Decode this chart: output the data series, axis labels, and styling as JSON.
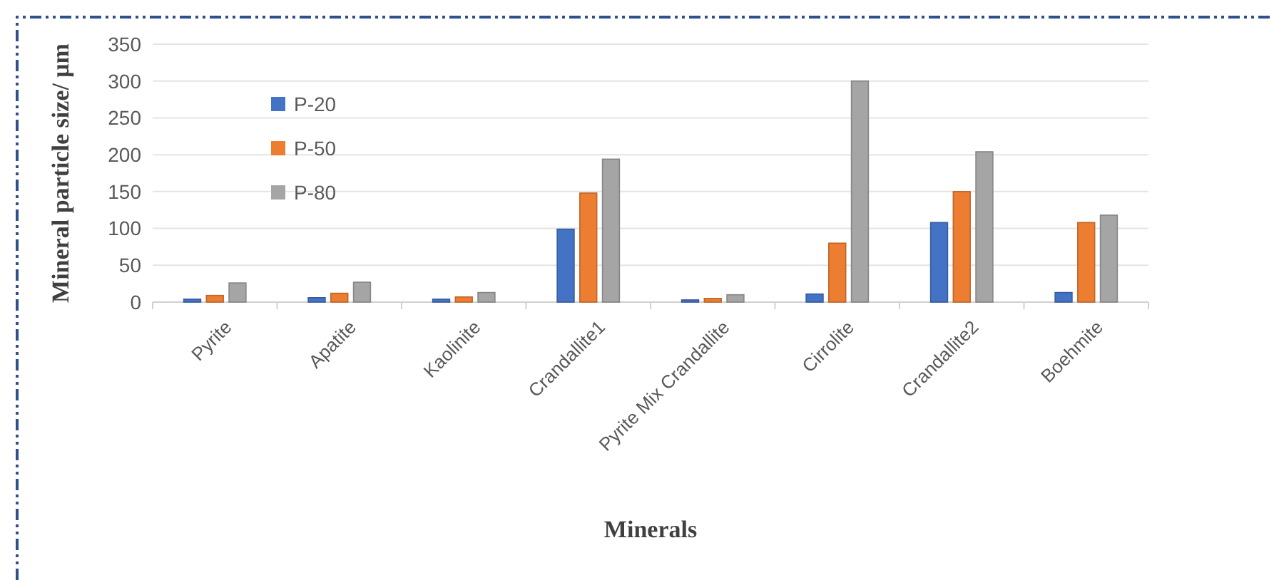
{
  "chart_data": {
    "type": "bar",
    "xlabel": "Minerals",
    "ylabel": "Mineral particle size/ μm",
    "categories": [
      "Pyrite",
      "Apatite",
      "Kaolinite",
      "Crandallite1",
      "Pyrite Mix Crandallite",
      "Cirrolite",
      "Crandallite2",
      "Boehmite"
    ],
    "series": [
      {
        "name": "P-20",
        "color": "#4472c4",
        "values": [
          4,
          6,
          4,
          99,
          3,
          11,
          108,
          13
        ]
      },
      {
        "name": "P-50",
        "color": "#ed7d31",
        "values": [
          9,
          12,
          7,
          148,
          5,
          80,
          150,
          108
        ]
      },
      {
        "name": "P-80",
        "color": "#a5a5a5",
        "values": [
          26,
          27,
          13,
          194,
          10,
          300,
          204,
          118
        ]
      }
    ],
    "ylim": [
      0,
      350
    ],
    "yticks": [
      0,
      50,
      100,
      150,
      200,
      250,
      300,
      350
    ],
    "grid": "y",
    "legend": "top left"
  }
}
